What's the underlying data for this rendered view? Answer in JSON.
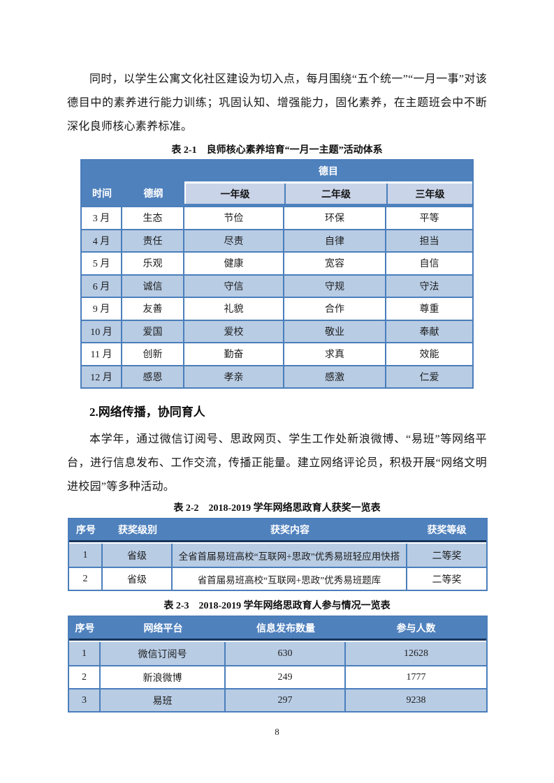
{
  "colors": {
    "header_blue": "#4f81bd",
    "row_light_blue": "#b8cce4",
    "grade_header_blue": "#c9d4e8",
    "border_blue": "#4a7ebb",
    "divider_navy": "#17365d"
  },
  "content": {
    "paragraph1": "同时，以学生公寓文化社区建设为切入点，每月围绕“五个统一”“一月一事”对该德目中的素养进行能力训练；巩固认知、增强能力，固化素养，在主题班会中不断深化良师核心素养标准。",
    "section2_heading": "2.网络传播，协同育人",
    "paragraph2": "本学年，通过微信订阅号、思政网页、学生工作处新浪微博、“易班”等网络平台，进行信息发布、工作交流，传播正能量。建立网络评论员，积极开展“网络文明进校园”等多种活动。"
  },
  "table1": {
    "caption": "表 2-1　良师核心素养培育“一月一主题”活动体系",
    "header": {
      "time": "时间",
      "degang": "德纲",
      "demu": "德目",
      "grades": [
        "一年级",
        "二年级",
        "三年级"
      ]
    },
    "rows": [
      [
        "3 月",
        "生态",
        "节俭",
        "环保",
        "平等"
      ],
      [
        "4 月",
        "责任",
        "尽责",
        "自律",
        "担当"
      ],
      [
        "5 月",
        "乐观",
        "健康",
        "宽容",
        "自信"
      ],
      [
        "6 月",
        "诚信",
        "守信",
        "守规",
        "守法"
      ],
      [
        "9 月",
        "友善",
        "礼貌",
        "合作",
        "尊重"
      ],
      [
        "10 月",
        "爱国",
        "爱校",
        "敬业",
        "奉献"
      ],
      [
        "11 月",
        "创新",
        "勤奋",
        "求真",
        "效能"
      ],
      [
        "12 月",
        "感恩",
        "孝亲",
        "感激",
        "仁爱"
      ]
    ]
  },
  "table2": {
    "caption": "表 2-2　2018-2019 学年网络思政育人获奖一览表",
    "headers": [
      "序号",
      "获奖级别",
      "获奖内容",
      "获奖等级"
    ],
    "rows": [
      [
        "1",
        "省级",
        "全省首届易班高校“互联网+思政”优秀易班轻应用快搭",
        "二等奖"
      ],
      [
        "2",
        "省级",
        "省首届易班高校“互联网+思政”优秀易班题库",
        "二等奖"
      ]
    ]
  },
  "table3": {
    "caption": "表 2-3　2018-2019 学年网络思政育人参与情况一览表",
    "headers": [
      "序号",
      "网络平台",
      "信息发布数量",
      "参与人数"
    ],
    "rows": [
      [
        "1",
        "微信订阅号",
        "630",
        "12628"
      ],
      [
        "2",
        "新浪微博",
        "249",
        "1777"
      ],
      [
        "3",
        "易班",
        "297",
        "9238"
      ]
    ]
  },
  "page": {
    "number": "8"
  }
}
